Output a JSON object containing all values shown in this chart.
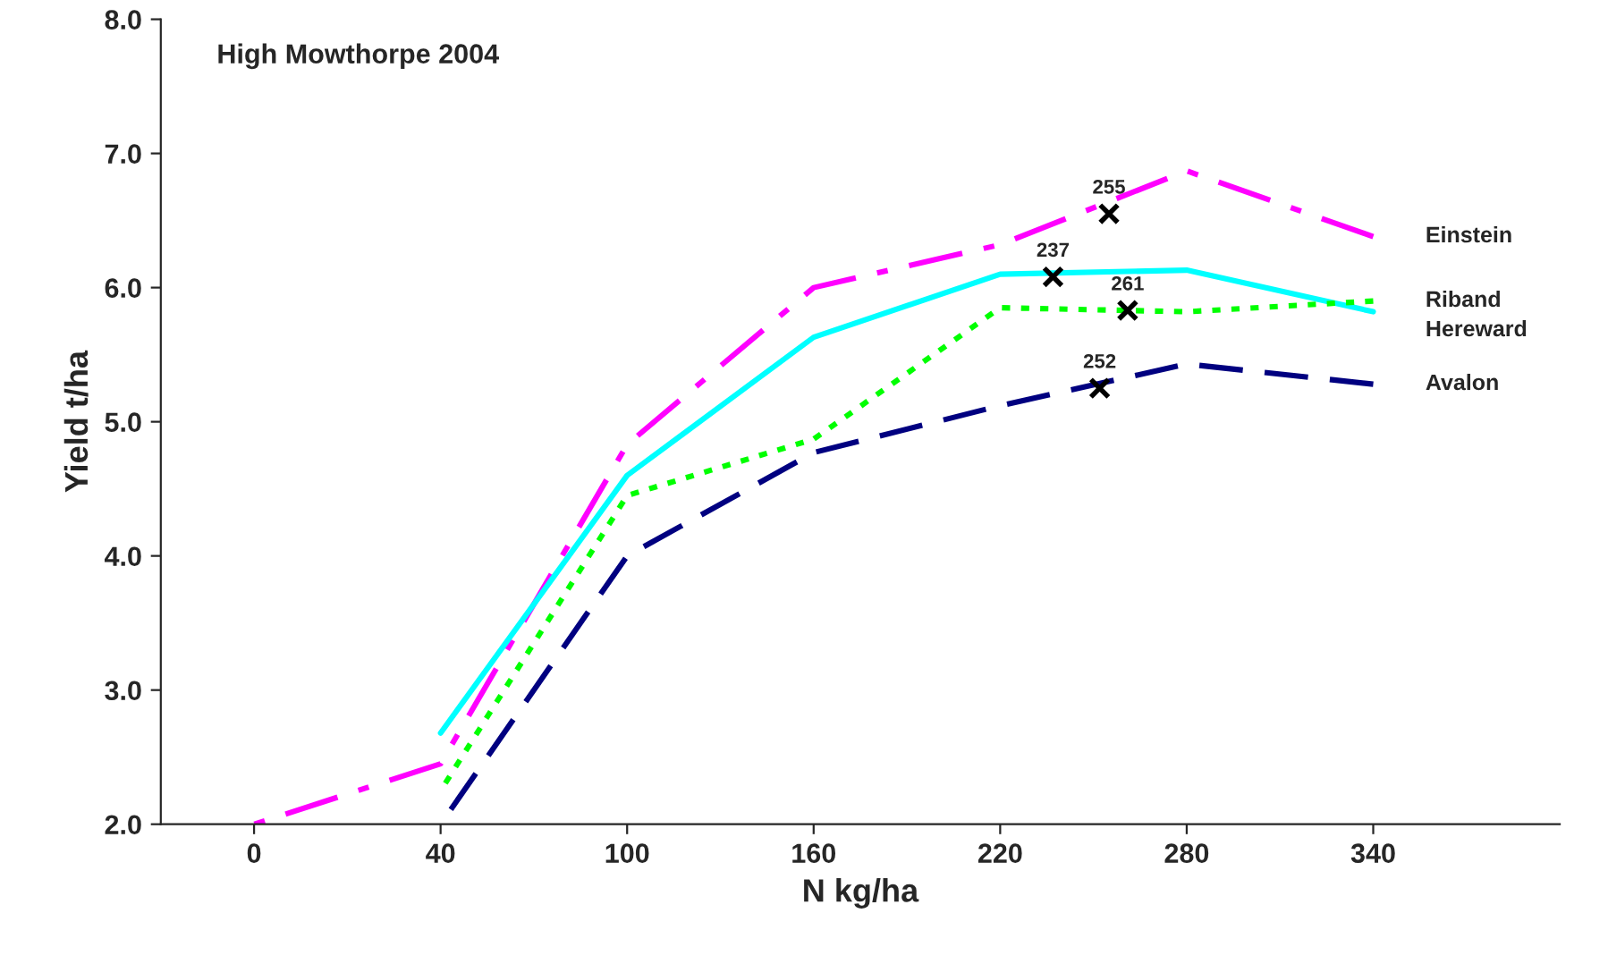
{
  "chart_data": {
    "type": "line",
    "title": "High Mowthorpe 2004",
    "xlabel": "N kg/ha",
    "ylabel": "Yield t/ha",
    "categories": [
      "0",
      "40",
      "100",
      "160",
      "220",
      "280",
      "340"
    ],
    "series": [
      {
        "name": "Einstein",
        "color": "#ff00ff",
        "line_style": "dashdot",
        "values": [
          2.0,
          2.45,
          4.83,
          6.0,
          6.32,
          6.87,
          6.38
        ]
      },
      {
        "name": "Hereward",
        "color": "#00ffff",
        "line_style": "solid",
        "values": [
          null,
          2.68,
          4.6,
          5.63,
          6.1,
          6.13,
          5.82
        ]
      },
      {
        "name": "Riband",
        "color": "#00ff00",
        "line_style": "dotted",
        "values": [
          null,
          2.25,
          4.45,
          4.87,
          5.85,
          5.82,
          5.9
        ]
      },
      {
        "name": "Avalon",
        "color": "#000080",
        "line_style": "dashed",
        "values": [
          null,
          2.0,
          4.0,
          4.77,
          5.12,
          5.43,
          5.28
        ]
      }
    ],
    "annotations": [
      {
        "text": "255",
        "y": 6.55
      },
      {
        "text": "237",
        "y": 6.08
      },
      {
        "text": "261",
        "y": 5.83
      },
      {
        "text": "252",
        "y": 5.25
      }
    ],
    "ylim": [
      2.0,
      8.0
    ],
    "yticks": [
      {
        "value": 2,
        "label": "2.0"
      },
      {
        "value": 3,
        "label": "3.0"
      },
      {
        "value": 4,
        "label": "4.0"
      },
      {
        "value": 5,
        "label": "5.0"
      },
      {
        "value": 6,
        "label": "6.0"
      },
      {
        "value": 7,
        "label": "7.0"
      },
      {
        "value": 8,
        "label": "8.0"
      }
    ],
    "grid": false,
    "legend": false
  }
}
